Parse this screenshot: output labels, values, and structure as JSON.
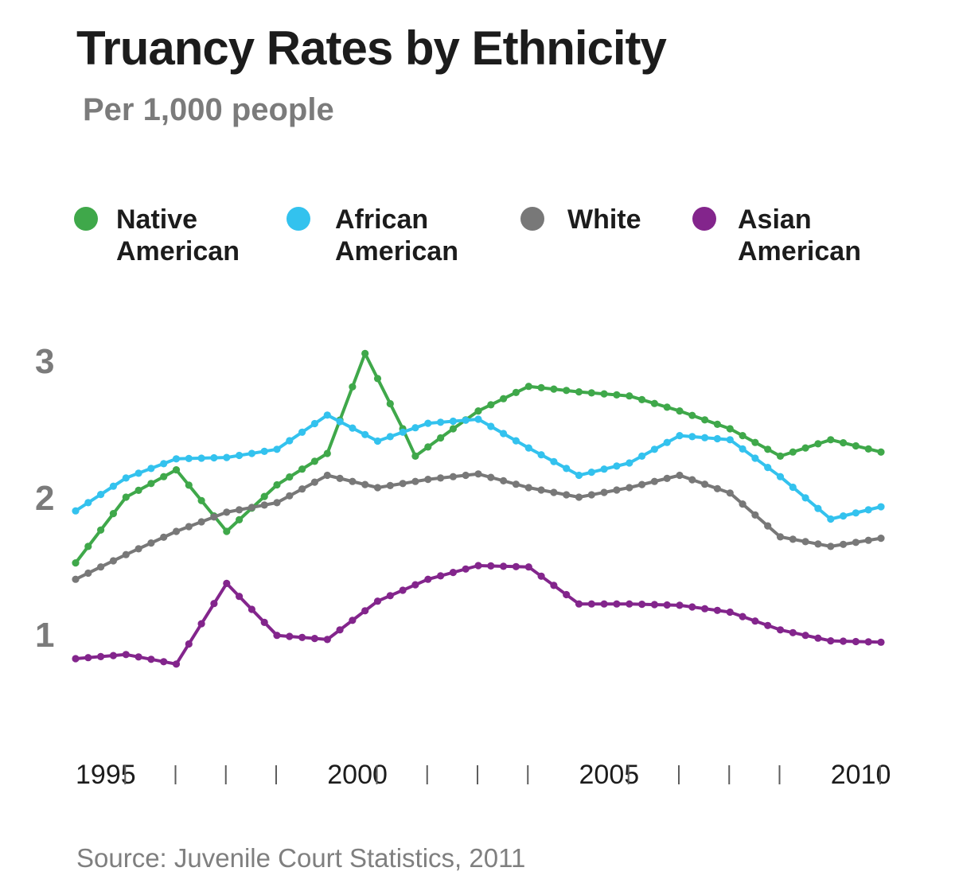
{
  "header": {
    "title": "Truancy Rates by Ethnicity",
    "subtitle": "Per 1,000 people"
  },
  "footer": {
    "source": "Source: Juvenile Court Statistics, 2011"
  },
  "legend": [
    {
      "line1": "Native",
      "line2": "American",
      "color": "#3fa84a"
    },
    {
      "line1": "African",
      "line2": "American",
      "color": "#33c2ee"
    },
    {
      "line1": "White",
      "line2": "",
      "color": "#787878"
    },
    {
      "line1": "Asian",
      "line2": "American",
      "color": "#83258c"
    }
  ],
  "chart_data": {
    "type": "line",
    "title": "Truancy Rates by Ethnicity",
    "subtitle": "Per 1,000 people",
    "xlabel": "",
    "ylabel": "",
    "xlim": [
      1995,
      2011.5
    ],
    "ylim": [
      0.5,
      3.25
    ],
    "y_ticks": [
      "1",
      "2",
      "3"
    ],
    "x_tick_labels": [
      "1995",
      "2000",
      "2005",
      "2010"
    ],
    "x_tick_marks": [
      1996,
      1997,
      1998,
      1999,
      2001,
      2002,
      2003,
      2004,
      2006,
      2007,
      2008,
      2009,
      2011
    ],
    "grid": false,
    "legend_position": "top",
    "marker": "circle",
    "series": [
      {
        "name": "Native American",
        "color": "#3fa84a",
        "points": [
          [
            1995,
            1.52
          ],
          [
            1996,
            2.0
          ],
          [
            1997,
            2.2
          ],
          [
            1998,
            1.75
          ],
          [
            1999,
            2.09
          ],
          [
            2000,
            2.32
          ],
          [
            2000.75,
            3.05
          ],
          [
            2001.5,
            2.5
          ],
          [
            2001.75,
            2.3
          ],
          [
            2002.5,
            2.5
          ],
          [
            2003,
            2.63
          ],
          [
            2004,
            2.81
          ],
          [
            2005,
            2.77
          ],
          [
            2006,
            2.74
          ],
          [
            2007,
            2.63
          ],
          [
            2008,
            2.5
          ],
          [
            2009,
            2.3
          ],
          [
            2009.5,
            2.36
          ],
          [
            2010,
            2.42
          ],
          [
            2011,
            2.33
          ]
        ]
      },
      {
        "name": "African American",
        "color": "#33c2ee",
        "points": [
          [
            1995,
            1.9
          ],
          [
            1996,
            2.14
          ],
          [
            1997,
            2.28
          ],
          [
            1998,
            2.29
          ],
          [
            1999,
            2.35
          ],
          [
            2000,
            2.6
          ],
          [
            2001,
            2.41
          ],
          [
            2002,
            2.54
          ],
          [
            2003,
            2.57
          ],
          [
            2004,
            2.36
          ],
          [
            2005,
            2.16
          ],
          [
            2006,
            2.25
          ],
          [
            2007,
            2.45
          ],
          [
            2008,
            2.42
          ],
          [
            2009,
            2.15
          ],
          [
            2010,
            1.84
          ],
          [
            2011,
            1.93
          ]
        ]
      },
      {
        "name": "White",
        "color": "#787878",
        "points": [
          [
            1995,
            1.4
          ],
          [
            1996,
            1.58
          ],
          [
            1997,
            1.75
          ],
          [
            1998,
            1.89
          ],
          [
            1999,
            1.96
          ],
          [
            2000,
            2.16
          ],
          [
            2001,
            2.07
          ],
          [
            2002,
            2.13
          ],
          [
            2003,
            2.17
          ],
          [
            2004,
            2.07
          ],
          [
            2005,
            2.0
          ],
          [
            2006,
            2.07
          ],
          [
            2007,
            2.16
          ],
          [
            2008,
            2.03
          ],
          [
            2009,
            1.71
          ],
          [
            2010,
            1.64
          ],
          [
            2011,
            1.7
          ]
        ]
      },
      {
        "name": "Asian American",
        "color": "#83258c",
        "points": [
          [
            1995,
            0.82
          ],
          [
            1996,
            0.85
          ],
          [
            1997,
            0.78
          ],
          [
            1998,
            1.37
          ],
          [
            1999,
            0.99
          ],
          [
            2000,
            0.96
          ],
          [
            2001,
            1.24
          ],
          [
            2002,
            1.4
          ],
          [
            2003,
            1.5
          ],
          [
            2004,
            1.49
          ],
          [
            2005,
            1.22
          ],
          [
            2006,
            1.22
          ],
          [
            2007,
            1.21
          ],
          [
            2008,
            1.16
          ],
          [
            2009,
            1.03
          ],
          [
            2010,
            0.95
          ],
          [
            2011,
            0.94
          ]
        ]
      }
    ]
  }
}
